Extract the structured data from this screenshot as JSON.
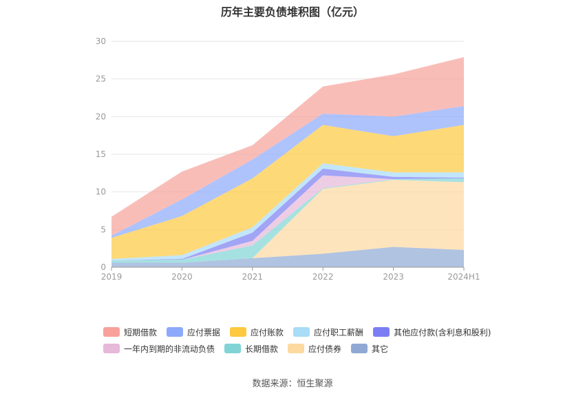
{
  "chart_data": {
    "type": "area",
    "title": "历年主要负债堆积图（亿元）",
    "categories": [
      "2019",
      "2020",
      "2021",
      "2022",
      "2023",
      "2024H1"
    ],
    "y_ticks": [
      "0",
      "5",
      "10",
      "15",
      "20",
      "25",
      "30"
    ],
    "ylim": [
      0,
      30
    ],
    "series": [
      {
        "name": "其它",
        "color": "#8fa9d4",
        "values": [
          0.6,
          0.6,
          1.2,
          1.8,
          2.7,
          2.3
        ]
      },
      {
        "name": "应付债券",
        "color": "#fdd9a0",
        "values": [
          0,
          0,
          0,
          8.6,
          8.9,
          9.0
        ]
      },
      {
        "name": "长期借款",
        "color": "#80d4d6",
        "values": [
          0.3,
          0.4,
          1.7,
          0.1,
          0.1,
          0.5
        ]
      },
      {
        "name": "一年内到期的非流动负债",
        "color": "#e6b8d9",
        "values": [
          0,
          0,
          0.6,
          1.7,
          0,
          0
        ]
      },
      {
        "name": "其他应付款(含利息和股利)",
        "color": "#7b7ef2",
        "values": [
          0,
          0.1,
          1.1,
          0.9,
          0.3,
          0.1
        ]
      },
      {
        "name": "应付职工薪酬",
        "color": "#a8dcf7",
        "values": [
          0.2,
          0.5,
          0.7,
          0.7,
          0.6,
          0.7
        ]
      },
      {
        "name": "应付账款",
        "color": "#fcc93f",
        "values": [
          2.8,
          5.2,
          6.5,
          5.1,
          4.8,
          6.3
        ]
      },
      {
        "name": "应付票据",
        "color": "#8ca9fb",
        "values": [
          0.3,
          2.2,
          2.5,
          1.5,
          2.6,
          2.5
        ]
      },
      {
        "name": "短期借款",
        "color": "#f7a19a",
        "values": [
          2.5,
          3.7,
          1.9,
          3.6,
          5.6,
          6.5
        ]
      }
    ]
  },
  "legend": {
    "rows": [
      [
        "短期借款",
        "应付票据",
        "应付账款",
        "应付职工薪酬",
        "其他应付款(含利息和股利)"
      ],
      [
        "一年内到期的非流动负债",
        "长期借款",
        "应付债券",
        "其它"
      ]
    ],
    "colors": {
      "短期借款": "#f7a19a",
      "应付票据": "#8ca9fb",
      "应付账款": "#fcc93f",
      "应付职工薪酬": "#a8dcf7",
      "其他应付款(含利息和股利)": "#7b7ef2",
      "一年内到期的非流动负债": "#e6b8d9",
      "长期借款": "#80d4d6",
      "应付债券": "#fdd9a0",
      "其它": "#8fa9d4"
    }
  },
  "source": "数据来源：恒生聚源"
}
